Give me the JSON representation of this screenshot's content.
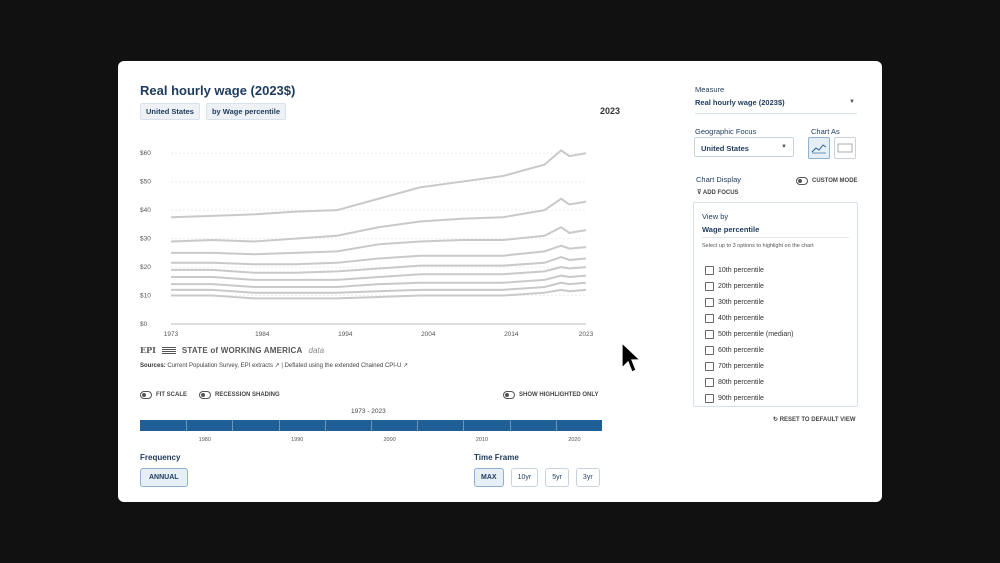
{
  "header": {
    "title": "Real hourly wage (2023$)",
    "tags": [
      "United States",
      "by Wage percentile"
    ],
    "current_year": "2023"
  },
  "chart_data": {
    "type": "line",
    "ylim": [
      0,
      65
    ],
    "xlim": [
      1973,
      2023
    ],
    "y_ticks": [
      "$0",
      "$10",
      "$20",
      "$30",
      "$40",
      "$50",
      "$60"
    ],
    "x_ticks": [
      "1973",
      "1984",
      "1994",
      "2004",
      "2014",
      "2023"
    ],
    "grid": true,
    "x": [
      1973,
      1978,
      1983,
      1988,
      1993,
      1998,
      2003,
      2008,
      2013,
      2018,
      2020,
      2021,
      2023
    ],
    "series": [
      {
        "values": [
          37.5,
          38,
          38.5,
          39.5,
          40,
          44,
          48,
          50,
          52,
          56,
          61,
          59,
          60
        ]
      },
      {
        "values": [
          29,
          29.5,
          29,
          30,
          31,
          34,
          36,
          37,
          37.5,
          40,
          44,
          42,
          43
        ]
      },
      {
        "values": [
          25,
          25,
          24.5,
          25,
          25.5,
          28,
          29,
          29.5,
          29.5,
          31,
          34,
          32,
          33
        ]
      },
      {
        "values": [
          21.5,
          21.5,
          21,
          21,
          21.5,
          23,
          24,
          24,
          24,
          25.5,
          27.5,
          26.5,
          27
        ]
      },
      {
        "values": [
          19,
          19,
          18,
          18,
          18.5,
          19.5,
          20.5,
          20.5,
          20.5,
          21.5,
          23.5,
          22.5,
          23
        ]
      },
      {
        "values": [
          16.5,
          16.5,
          15.5,
          15.5,
          15.5,
          16.5,
          17.5,
          17.5,
          17.5,
          18.5,
          20,
          19.5,
          20
        ]
      },
      {
        "values": [
          14,
          14,
          13,
          13,
          13,
          14,
          14.5,
          14.5,
          14.5,
          15.5,
          17,
          16.5,
          17
        ]
      },
      {
        "values": [
          12,
          12,
          11,
          11,
          11,
          11.5,
          12,
          12,
          12,
          13,
          14.5,
          14,
          14.5
        ]
      },
      {
        "values": [
          10,
          10,
          9,
          9,
          9,
          9.5,
          10,
          10,
          10,
          11,
          12,
          11.5,
          12
        ]
      }
    ],
    "series_color": "#c9c9c9"
  },
  "branding": {
    "epi": "EPI",
    "swa": "STATE of WORKING AMERICA",
    "data": "data"
  },
  "sources": {
    "label": "Sources:",
    "text": "Current Population Survey, EPI extracts",
    "deflated": "| Deflated using the extended Chained CPI-U"
  },
  "toggles": {
    "fit_scale": "FIT SCALE",
    "recession": "RECESSION SHADING",
    "highlighted": "SHOW HIGHLIGHTED ONLY"
  },
  "range": {
    "label": "1973 - 2023",
    "years": [
      "1980",
      "1990",
      "2000",
      "2010",
      "2020"
    ],
    "color": "#1f5f96"
  },
  "frequency": {
    "label": "Frequency",
    "value": "ANNUAL"
  },
  "time_frame": {
    "label": "Time Frame",
    "options": [
      "MAX",
      "10yr",
      "5yr",
      "3yr"
    ]
  },
  "panel": {
    "measure_label": "Measure",
    "measure_value": "Real hourly wage (2023$)",
    "geo_label": "Geographic Focus",
    "geo_value": "United States",
    "chart_as_label": "Chart As",
    "chart_display_label": "Chart Display",
    "custom_mode": "CUSTOM MODE",
    "add_focus": "ADD FOCUS",
    "view_by_label": "View by",
    "view_by_value": "Wage percentile",
    "hint": "Select up to 3 options to highlight on the chart",
    "options": [
      "10th percentile",
      "20th percentile",
      "30th percentile",
      "40th percentile",
      "50th percentile (median)",
      "60th percentile",
      "70th percentile",
      "80th percentile",
      "90th percentile"
    ],
    "reset": "RESET TO DEFAULT VIEW"
  }
}
